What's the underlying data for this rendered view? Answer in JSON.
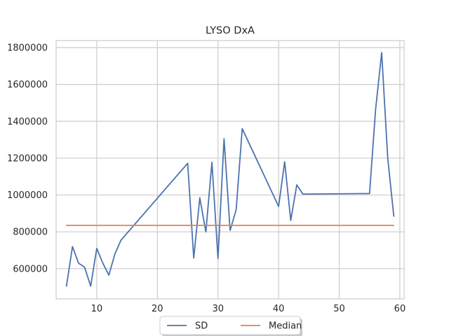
{
  "chart_data": {
    "type": "line",
    "title": "LYSO DxA",
    "xlabel": "",
    "ylabel": "",
    "xlim": [
      3.3,
      60.7
    ],
    "ylim": [
      436000,
      1838000
    ],
    "xticks": [
      10,
      20,
      30,
      40,
      50,
      60
    ],
    "yticks": [
      600000,
      800000,
      1000000,
      1200000,
      1400000,
      1600000,
      1800000
    ],
    "grid": true,
    "legend_position": "bottom-center",
    "series": [
      {
        "name": "SD",
        "color": "#4c72b0",
        "points": [
          [
            5,
            505000
          ],
          [
            6,
            720000
          ],
          [
            7,
            630000
          ],
          [
            8,
            608000
          ],
          [
            9,
            505000
          ],
          [
            10,
            710000
          ],
          [
            11,
            630000
          ],
          [
            12,
            565000
          ],
          [
            13,
            680000
          ],
          [
            14,
            755000
          ],
          [
            25,
            1172000
          ],
          [
            26,
            658000
          ],
          [
            27,
            985000
          ],
          [
            28,
            800000
          ],
          [
            29,
            1178000
          ],
          [
            30,
            655000
          ],
          [
            31,
            1305000
          ],
          [
            32,
            808000
          ],
          [
            33,
            920000
          ],
          [
            34,
            1360000
          ],
          [
            40,
            938000
          ],
          [
            41,
            1180000
          ],
          [
            42,
            862000
          ],
          [
            43,
            1055000
          ],
          [
            44,
            1005000
          ],
          [
            55,
            1008000
          ],
          [
            56,
            1465000
          ],
          [
            57,
            1773000
          ],
          [
            58,
            1200000
          ],
          [
            59,
            885000
          ]
        ]
      },
      {
        "name": "Median",
        "color": "#dd8452",
        "points": [
          [
            5,
            835000
          ],
          [
            59,
            835000
          ]
        ]
      }
    ]
  }
}
